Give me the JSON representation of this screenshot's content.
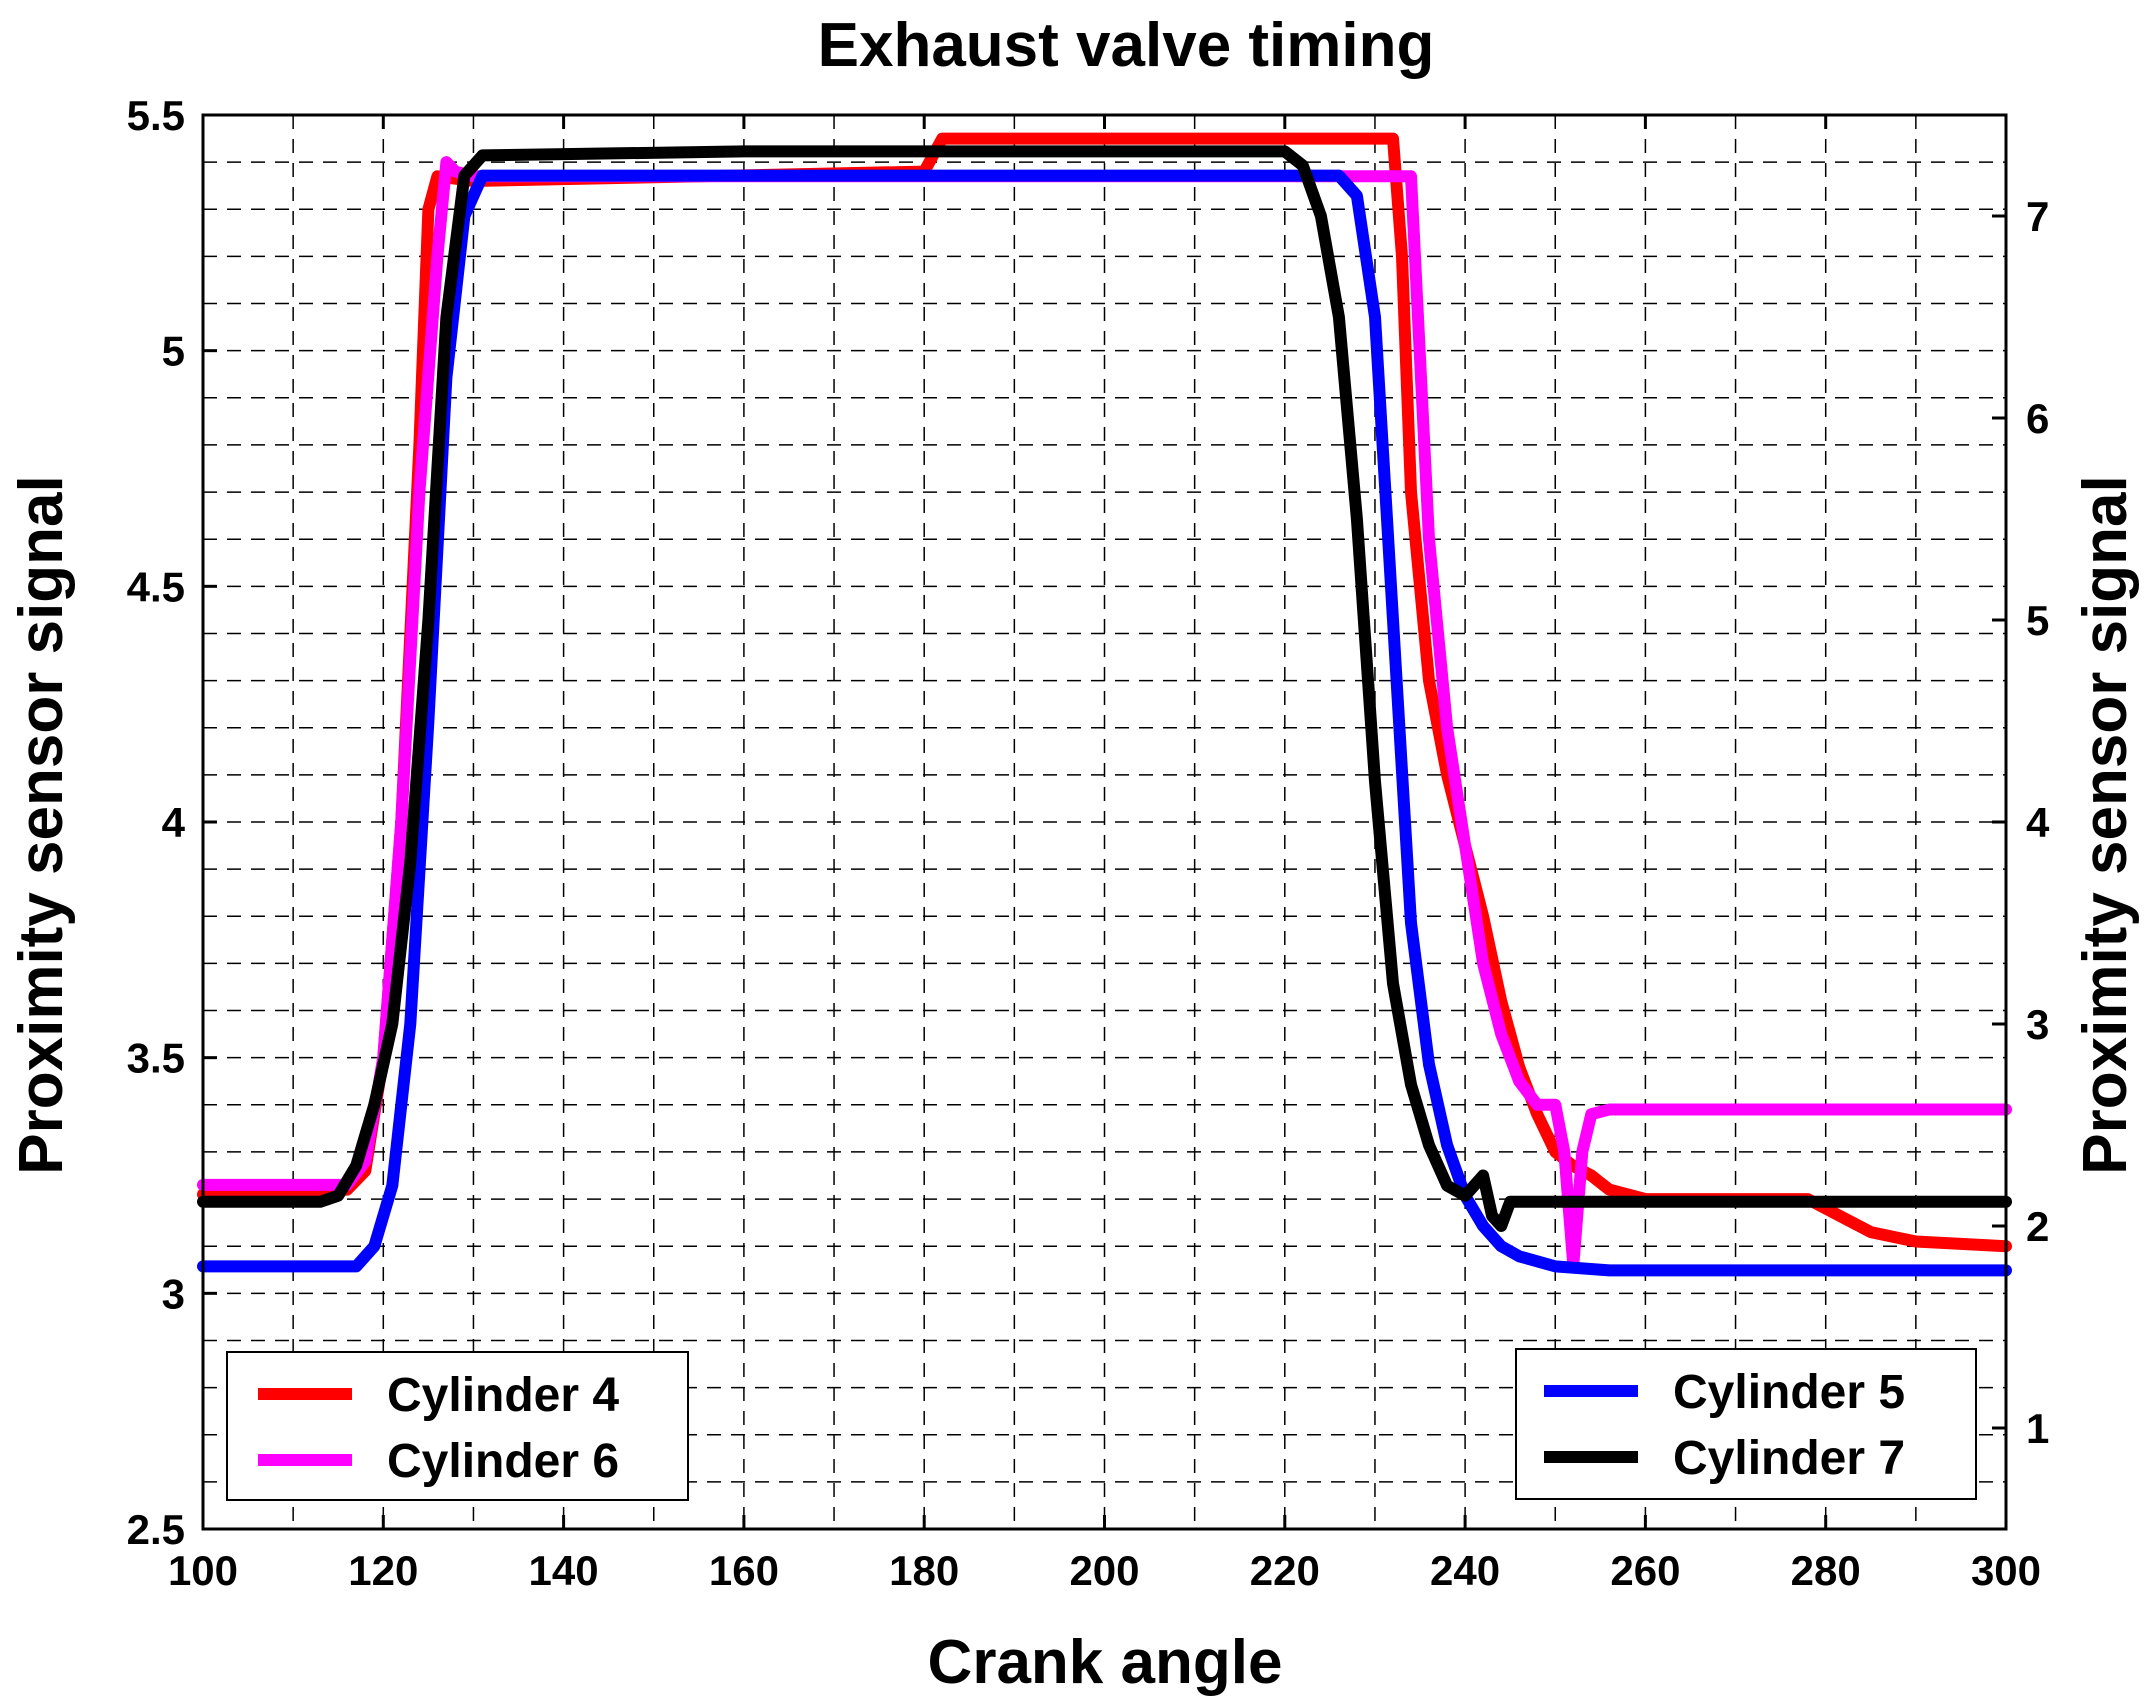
{
  "chart_data": {
    "type": "line",
    "title": "Exhaust valve timing",
    "xlabel": "Crank angle",
    "ylabel": "Proximity sensor signal",
    "y2label": "Proximity sensor signal",
    "xlim": [
      100,
      300
    ],
    "ylim": [
      2.5,
      5.5
    ],
    "y2lim": [
      0.5,
      7.5
    ],
    "xticks": [
      "100",
      "120",
      "140",
      "160",
      "180",
      "200",
      "220",
      "240",
      "260",
      "280",
      "300"
    ],
    "yticks": [
      "2.5",
      "3",
      "3.5",
      "4",
      "4.5",
      "5",
      "5.5"
    ],
    "y2ticks": [
      "1",
      "2",
      "3",
      "4",
      "5",
      "6",
      "7"
    ],
    "grid": true,
    "series": [
      {
        "name": "Cylinder 4",
        "color": "#ff0000",
        "axis": "left",
        "x": [
          100,
          116,
          118,
          120,
          122,
          124,
          125,
          126,
          130,
          180,
          182,
          232,
          233,
          234,
          236,
          238,
          240,
          242,
          244,
          246,
          248,
          250,
          252,
          254,
          256,
          260,
          270,
          278,
          282,
          285,
          290,
          300
        ],
        "y": [
          3.21,
          3.22,
          3.26,
          3.5,
          4.0,
          4.8,
          5.3,
          5.37,
          5.36,
          5.38,
          5.45,
          5.45,
          5.2,
          4.7,
          4.3,
          4.1,
          3.95,
          3.8,
          3.62,
          3.48,
          3.38,
          3.3,
          3.27,
          3.25,
          3.22,
          3.2,
          3.2,
          3.2,
          3.16,
          3.13,
          3.11,
          3.1
        ]
      },
      {
        "name": "Cylinder 6",
        "color": "#ff00ff",
        "axis": "left",
        "x": [
          100,
          116,
          118,
          120,
          122,
          124,
          126,
          127,
          128,
          130,
          230,
          234,
          236,
          238,
          240,
          242,
          244,
          246,
          248,
          250,
          251,
          252,
          253,
          254,
          256,
          260,
          300
        ],
        "y": [
          3.23,
          3.23,
          3.28,
          3.5,
          4.0,
          4.7,
          5.2,
          5.4,
          5.38,
          5.37,
          5.37,
          5.37,
          4.6,
          4.2,
          3.95,
          3.7,
          3.55,
          3.45,
          3.4,
          3.4,
          3.3,
          3.06,
          3.3,
          3.38,
          3.39,
          3.39,
          3.39
        ]
      },
      {
        "name": "Cylinder 5",
        "color": "#0000ff",
        "axis": "right",
        "x": [
          100,
          117,
          119,
          121,
          123,
          125,
          127,
          129,
          131,
          180,
          226,
          228,
          230,
          232,
          234,
          236,
          238,
          240,
          242,
          244,
          246,
          250,
          256,
          300
        ],
        "y": [
          1.8,
          1.8,
          1.9,
          2.2,
          3.0,
          4.5,
          6.2,
          7.0,
          7.2,
          7.2,
          7.2,
          7.1,
          6.5,
          5.0,
          3.5,
          2.8,
          2.4,
          2.15,
          2.0,
          1.9,
          1.85,
          1.8,
          1.78,
          1.78
        ]
      },
      {
        "name": "Cylinder 7",
        "color": "#000000",
        "axis": "right",
        "x": [
          100,
          113,
          115,
          117,
          119,
          121,
          123,
          125,
          127,
          129,
          131,
          160,
          220,
          222,
          224,
          226,
          228,
          230,
          232,
          234,
          236,
          238,
          240,
          242,
          243,
          244,
          245,
          300
        ],
        "y": [
          2.12,
          2.12,
          2.15,
          2.3,
          2.6,
          3.0,
          3.8,
          5.0,
          6.5,
          7.2,
          7.3,
          7.32,
          7.32,
          7.25,
          7.0,
          6.5,
          5.5,
          4.2,
          3.2,
          2.7,
          2.4,
          2.2,
          2.15,
          2.25,
          2.05,
          2.0,
          2.12,
          2.12
        ]
      }
    ],
    "legends": [
      {
        "position": "bottom-left",
        "entries": [
          "Cylinder 4",
          "Cylinder 6"
        ]
      },
      {
        "position": "bottom-right",
        "entries": [
          "Cylinder 5",
          "Cylinder 7"
        ]
      }
    ]
  }
}
